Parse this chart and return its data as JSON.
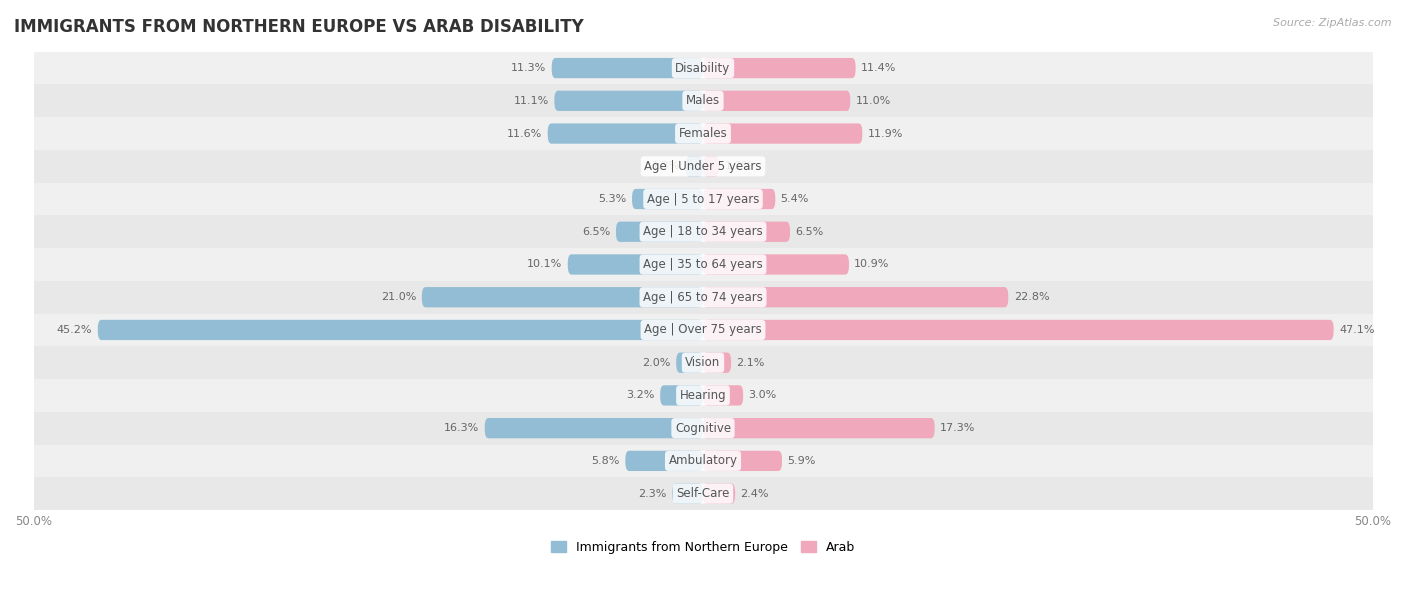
{
  "title": "IMMIGRANTS FROM NORTHERN EUROPE VS ARAB DISABILITY",
  "source": "Source: ZipAtlas.com",
  "categories": [
    "Disability",
    "Males",
    "Females",
    "Age | Under 5 years",
    "Age | 5 to 17 years",
    "Age | 18 to 34 years",
    "Age | 35 to 64 years",
    "Age | 65 to 74 years",
    "Age | Over 75 years",
    "Vision",
    "Hearing",
    "Cognitive",
    "Ambulatory",
    "Self-Care"
  ],
  "left_values": [
    11.3,
    11.1,
    11.6,
    1.3,
    5.3,
    6.5,
    10.1,
    21.0,
    45.2,
    2.0,
    3.2,
    16.3,
    5.8,
    2.3
  ],
  "right_values": [
    11.4,
    11.0,
    11.9,
    1.2,
    5.4,
    6.5,
    10.9,
    22.8,
    47.1,
    2.1,
    3.0,
    17.3,
    5.9,
    2.4
  ],
  "left_color": "#93bdd4",
  "right_color": "#f0a8bc",
  "left_label": "Immigrants from Northern Europe",
  "right_label": "Arab",
  "bar_height": 0.62,
  "xlim": 50.0,
  "row_colors": [
    "#f0f0f0",
    "#e8e8e8"
  ],
  "title_fontsize": 12,
  "label_fontsize": 8.5,
  "value_fontsize": 8,
  "tick_fontsize": 8.5
}
